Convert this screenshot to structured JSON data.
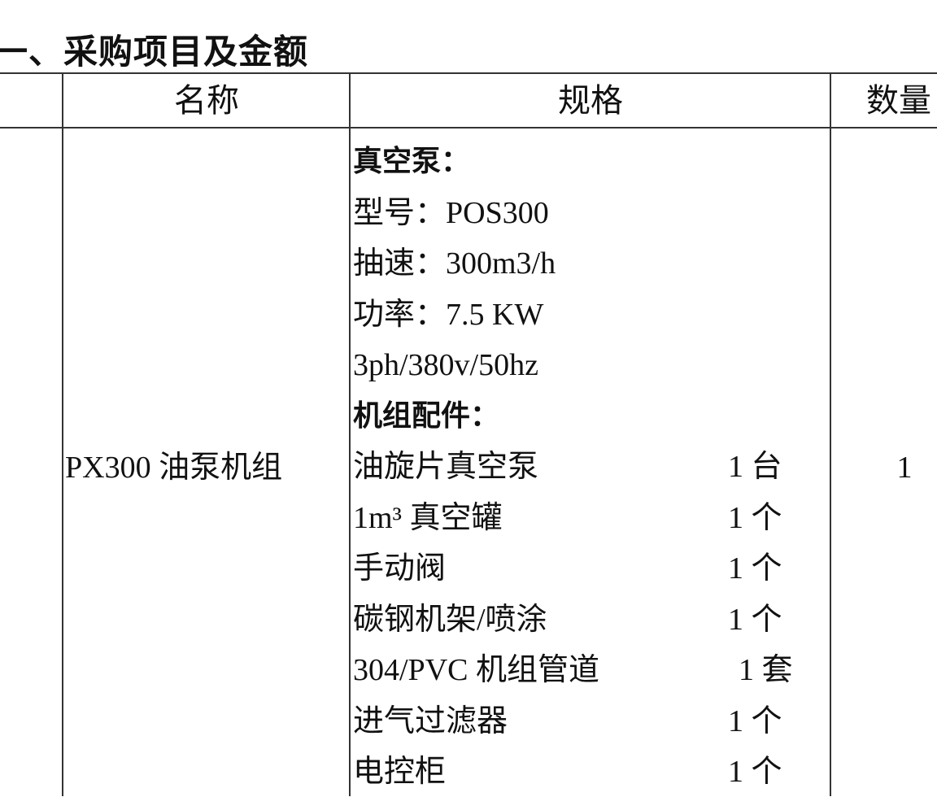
{
  "section_title": "一、采购项目及金额",
  "table": {
    "headers": [
      "",
      "名称",
      "规格",
      "数量"
    ],
    "row": {
      "name": "PX300 油泵机组",
      "quantity": "1",
      "spec_lines": [
        {
          "text": "真空泵：",
          "bold": true
        },
        {
          "text": "型号：POS300"
        },
        {
          "text": "抽速：300m3/h"
        },
        {
          "text": "功率：7.5 KW"
        },
        {
          "text": "3ph/380v/50hz"
        },
        {
          "text": "机组配件：",
          "bold": true
        },
        {
          "text": "油旋片真空泵",
          "qty": "1 台"
        },
        {
          "text": "1m³ 真空罐",
          "qty": "1 个"
        },
        {
          "text": "手动阀",
          "qty": "1 个"
        },
        {
          "text": "碳钢机架/喷涂",
          "qty": "1 个"
        },
        {
          "text": "304/PVC 机组管道",
          "qty": "1 套"
        },
        {
          "text": "进气过滤器",
          "qty": "1 个"
        },
        {
          "text": "电控柜",
          "qty": "1 个"
        }
      ]
    }
  }
}
